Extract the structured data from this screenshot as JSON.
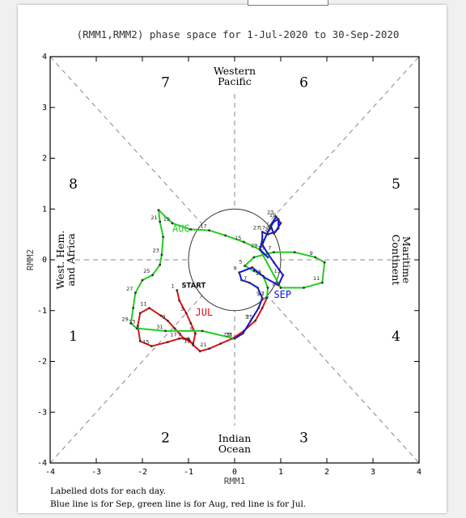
{
  "chart_data": {
    "type": "line",
    "title": "(RMM1,RMM2) phase space for  1-Jul-2020 to 30-Sep-2020",
    "xlabel": "RMM1",
    "ylabel": "RMM2",
    "xlim": [
      -4,
      4
    ],
    "ylim": [
      -4,
      4
    ],
    "xticks": [
      "-4",
      "-3",
      "-2",
      "-1",
      "0",
      "1",
      "2",
      "3",
      "4"
    ],
    "yticks": [
      "-4",
      "-3",
      "-2",
      "-1",
      "0",
      "1",
      "2",
      "3",
      "4"
    ],
    "grid": false,
    "phase_numbers": [
      {
        "label": "1",
        "x": -3.5,
        "y": -1.5
      },
      {
        "label": "2",
        "x": -1.5,
        "y": -3.5
      },
      {
        "label": "3",
        "x": 1.5,
        "y": -3.5
      },
      {
        "label": "4",
        "x": 3.5,
        "y": -1.5
      },
      {
        "label": "5",
        "x": 3.5,
        "y": 1.5
      },
      {
        "label": "6",
        "x": 1.5,
        "y": 3.5
      },
      {
        "label": "7",
        "x": -1.5,
        "y": 3.5
      },
      {
        "label": "8",
        "x": -3.5,
        "y": 1.5
      }
    ],
    "regions": {
      "top": [
        "Western",
        "Pacific"
      ],
      "bottom": [
        "Indian",
        "Ocean"
      ],
      "left": [
        "West. Hem.",
        "and Africa"
      ],
      "right": [
        "Maritime",
        "Continent"
      ]
    },
    "series": [
      {
        "name": "Jul",
        "color": "#dd1111",
        "label": "JUL",
        "label_pos": [
          -0.85,
          -1.1
        ],
        "points": [
          [
            -1.25,
            -0.6
          ],
          [
            -1.2,
            -0.8
          ],
          [
            -1.05,
            -1.05
          ],
          [
            -0.95,
            -1.25
          ],
          [
            -0.85,
            -1.45
          ],
          [
            -0.9,
            -1.65
          ],
          [
            -1.1,
            -1.55
          ],
          [
            -1.3,
            -1.35
          ],
          [
            -1.45,
            -1.2
          ],
          [
            -1.6,
            -1.1
          ],
          [
            -1.85,
            -0.95
          ],
          [
            -2.05,
            -1.05
          ],
          [
            -2.1,
            -1.3
          ],
          [
            -2.05,
            -1.6
          ],
          [
            -1.8,
            -1.7
          ],
          [
            -1.45,
            -1.62
          ],
          [
            -1.2,
            -1.55
          ],
          [
            -1.0,
            -1.55
          ],
          [
            -0.9,
            -1.68
          ],
          [
            -0.75,
            -1.8
          ],
          [
            -0.55,
            -1.75
          ],
          [
            -0.3,
            -1.65
          ],
          [
            -0.05,
            -1.55
          ],
          [
            0.2,
            -1.4
          ],
          [
            0.45,
            -1.2
          ],
          [
            0.6,
            -0.95
          ],
          [
            0.7,
            -0.75
          ]
        ]
      },
      {
        "name": "Aug",
        "color": "#22cc22",
        "label": "AUG",
        "label_pos": [
          -1.35,
          0.55
        ],
        "points": [
          [
            0.7,
            -0.75
          ],
          [
            0.72,
            -0.55
          ],
          [
            0.62,
            -0.32
          ],
          [
            0.42,
            -0.22
          ],
          [
            0.22,
            -0.12
          ],
          [
            0.42,
            0.05
          ],
          [
            0.85,
            0.15
          ],
          [
            1.3,
            0.15
          ],
          [
            1.75,
            0.05
          ],
          [
            1.95,
            -0.05
          ],
          [
            1.9,
            -0.45
          ],
          [
            1.5,
            -0.55
          ],
          [
            1.0,
            -0.55
          ],
          [
            0.55,
            0.2
          ],
          [
            0.2,
            0.35
          ],
          [
            -0.2,
            0.48
          ],
          [
            -0.55,
            0.58
          ],
          [
            -0.95,
            0.6
          ],
          [
            -1.35,
            0.72
          ],
          [
            -1.65,
            0.98
          ],
          [
            -1.62,
            0.75
          ],
          [
            -1.55,
            0.45
          ],
          [
            -1.58,
            0.1
          ],
          [
            -1.62,
            -0.1
          ],
          [
            -1.78,
            -0.3
          ],
          [
            -2.0,
            -0.4
          ],
          [
            -2.15,
            -0.65
          ],
          [
            -2.2,
            -0.95
          ],
          [
            -2.25,
            -1.25
          ],
          [
            -2.12,
            -1.35
          ],
          [
            -1.5,
            -1.4
          ],
          [
            -0.7,
            -1.4
          ],
          [
            0.0,
            -1.55
          ]
        ]
      },
      {
        "name": "Sep",
        "color": "#1111dd",
        "label": "SEP",
        "label_pos": [
          0.85,
          -0.75
        ],
        "points": [
          [
            0.0,
            -1.55
          ],
          [
            0.18,
            -1.45
          ],
          [
            0.35,
            -1.2
          ],
          [
            0.52,
            -0.95
          ],
          [
            0.6,
            -0.75
          ],
          [
            0.5,
            -0.55
          ],
          [
            0.32,
            -0.45
          ],
          [
            0.15,
            -0.4
          ],
          [
            0.1,
            -0.25
          ],
          [
            0.38,
            -0.15
          ],
          [
            0.65,
            -0.35
          ],
          [
            0.95,
            -0.5
          ],
          [
            1.05,
            -0.3
          ],
          [
            0.85,
            -0.05
          ],
          [
            0.7,
            0.15
          ],
          [
            0.6,
            0.3
          ],
          [
            0.72,
            0.55
          ],
          [
            0.85,
            0.75
          ],
          [
            0.95,
            0.8
          ],
          [
            0.95,
            0.62
          ],
          [
            0.85,
            0.52
          ],
          [
            0.78,
            0.68
          ],
          [
            0.9,
            0.85
          ],
          [
            1.0,
            0.72
          ],
          [
            0.88,
            0.55
          ],
          [
            0.72,
            0.5
          ],
          [
            0.6,
            0.55
          ],
          [
            0.6,
            0.4
          ],
          [
            0.55,
            0.2
          ],
          [
            0.72,
            0.05
          ]
        ]
      }
    ],
    "annotations": [
      {
        "text": "START",
        "x": -1.15,
        "y": -0.55
      }
    ],
    "footnotes": [
      "Labelled dots for each day.",
      "Blue line is for Sep, green line is for Aug, red line is for Jul."
    ]
  }
}
